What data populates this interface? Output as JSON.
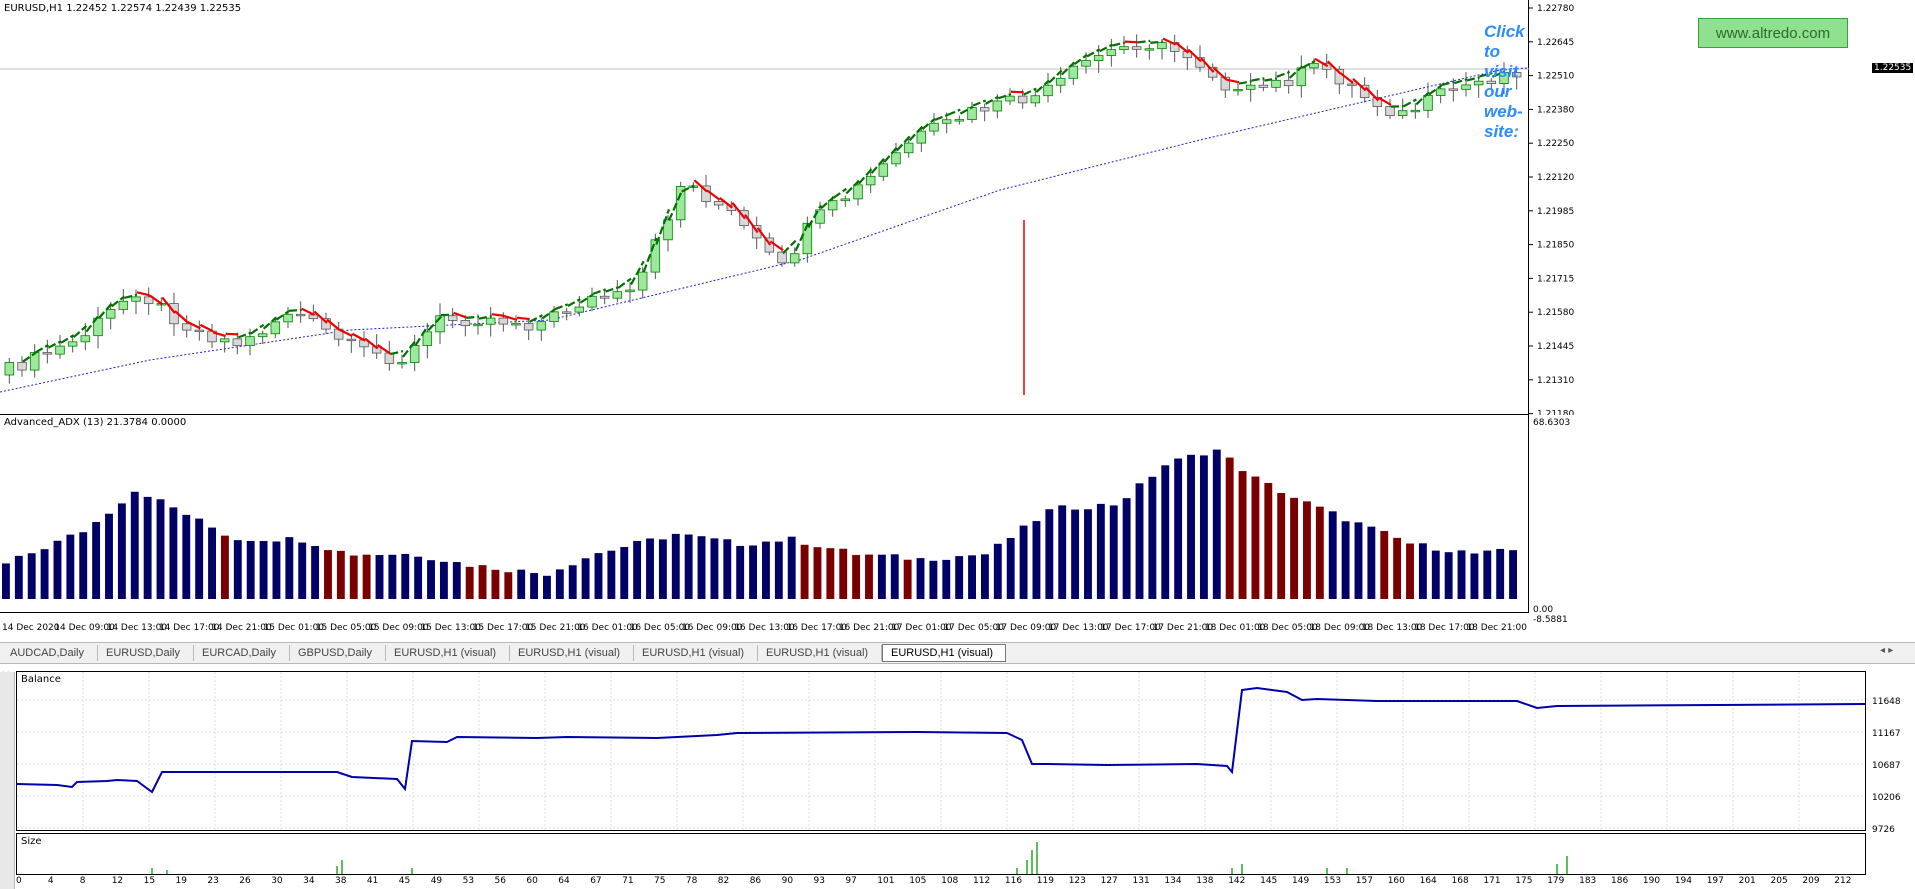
{
  "main_chart": {
    "title": "EURUSD,H1  1.22452 1.22574 1.22439 1.22535",
    "price_ticks": [
      "1.22780",
      "1.22645",
      "1.22510",
      "1.22380",
      "1.22250",
      "1.22120",
      "1.21985",
      "1.21850",
      "1.21715",
      "1.21580",
      "1.21445",
      "1.21310",
      "1.21180"
    ],
    "current_price": "1.22535",
    "visit_label": "Click to visit our web-site:",
    "visit_button": "www.altredo.com"
  },
  "indicator": {
    "title": "Advanced_ADX (13) 21.3784 0.0000",
    "scale_top": "68.6303",
    "scale_bottom": "0.00",
    "scale_bottom2": "-8.5881"
  },
  "time_axis": [
    "14 Dec 2020",
    "14 Dec 09:00",
    "14 Dec 13:00",
    "14 Dec 17:00",
    "14 Dec 21:00",
    "15 Dec 01:00",
    "15 Dec 05:00",
    "15 Dec 09:00",
    "15 Dec 13:00",
    "15 Dec 17:00",
    "15 Dec 21:00",
    "16 Dec 01:00",
    "16 Dec 05:00",
    "16 Dec 09:00",
    "16 Dec 13:00",
    "16 Dec 17:00",
    "16 Dec 21:00",
    "17 Dec 01:00",
    "17 Dec 05:00",
    "17 Dec 09:00",
    "17 Dec 13:00",
    "17 Dec 17:00",
    "17 Dec 21:00",
    "18 Dec 01:00",
    "18 Dec 05:00",
    "18 Dec 09:00",
    "18 Dec 13:00",
    "18 Dec 17:00",
    "18 Dec 21:00"
  ],
  "tabs": [
    "AUDCAD,Daily",
    "EURUSD,Daily",
    "EURCAD,Daily",
    "GBPUSD,Daily",
    "EURUSD,H1 (visual)",
    "EURUSD,H1 (visual)",
    "EURUSD,H1 (visual)",
    "EURUSD,H1 (visual)",
    "EURUSD,H1 (visual)"
  ],
  "active_tab_index": 8,
  "balance_panel": {
    "title": "Balance",
    "ticks": [
      "11648",
      "11167",
      "10687",
      "10206",
      "9726"
    ]
  },
  "size_panel": {
    "title": "Size"
  },
  "x_axis_bottom": [
    "0",
    "4",
    "8",
    "12",
    "15",
    "19",
    "23",
    "26",
    "30",
    "34",
    "38",
    "41",
    "45",
    "49",
    "53",
    "56",
    "60",
    "64",
    "67",
    "71",
    "75",
    "78",
    "82",
    "86",
    "90",
    "93",
    "97",
    "101",
    "105",
    "108",
    "112",
    "116",
    "119",
    "123",
    "127",
    "131",
    "134",
    "138",
    "142",
    "145",
    "149",
    "153",
    "157",
    "160",
    "164",
    "168",
    "171",
    "175",
    "179",
    "183",
    "186",
    "190",
    "194",
    "197",
    "201",
    "205",
    "209",
    "212"
  ],
  "colors": {
    "bull_fill": "#9ee89e",
    "bear_fill": "#d8d8d8",
    "red_line": "#ee0000",
    "green_line": "#007000",
    "blue_dots": "#2020cc",
    "adx_blue": "#000066",
    "adx_red": "#7a0000",
    "balance_line": "#0000aa",
    "size_bars": "#22aa22"
  }
}
